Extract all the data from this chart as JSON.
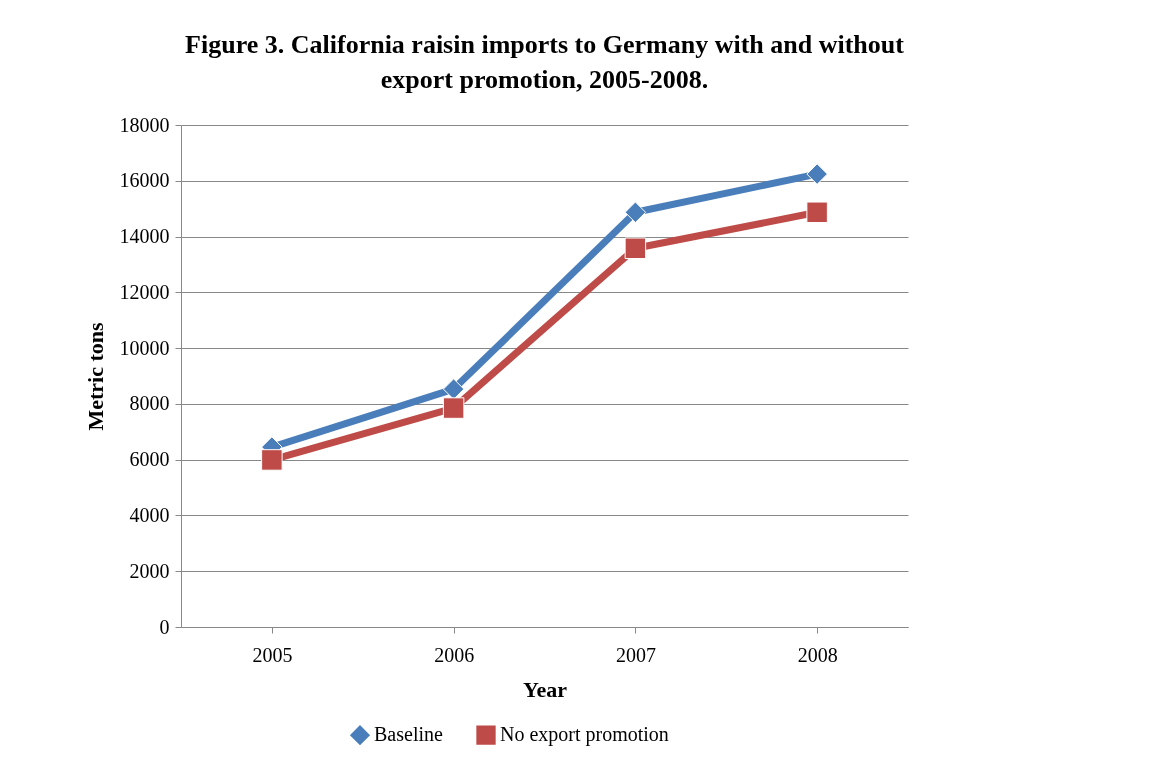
{
  "chart_data": {
    "type": "line",
    "title": "Figure 3.  California raisin imports to Germany with and without export promotion, 2005-2008.",
    "xlabel": "Year",
    "ylabel": "Metric tons",
    "categories": [
      "2005",
      "2006",
      "2007",
      "2008"
    ],
    "series": [
      {
        "name": "Baseline",
        "color": "#4a7ebb",
        "marker": "diamond",
        "values": [
          6450,
          8530,
          14870,
          16240
        ]
      },
      {
        "name": "No export promotion",
        "color": "#be4b48",
        "marker": "square",
        "values": [
          5990,
          7850,
          13580,
          14870
        ]
      }
    ],
    "ylim": [
      0,
      18000
    ],
    "yticks": [
      0,
      2000,
      4000,
      6000,
      8000,
      10000,
      12000,
      14000,
      16000,
      18000
    ],
    "grid": "y",
    "legend": "bottom",
    "line_style": "solid"
  }
}
